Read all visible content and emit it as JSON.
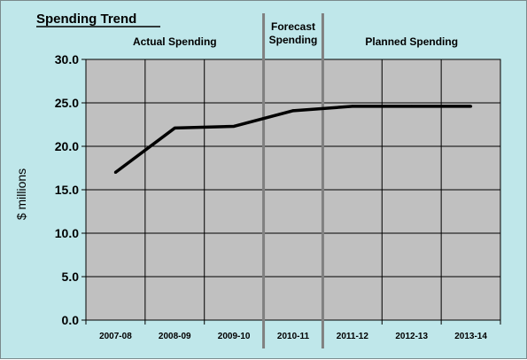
{
  "chart_data": {
    "type": "line",
    "title": "Spending Trend",
    "ylabel": "$ millions",
    "xlabel": "",
    "categories": [
      "2007-08",
      "2008-09",
      "2009-10",
      "2010-11",
      "2011-12",
      "2012-13",
      "2013-14"
    ],
    "series": [
      {
        "values": [
          17.0,
          22.1,
          22.3,
          24.1,
          24.6,
          24.6,
          24.6
        ]
      }
    ],
    "ylim": [
      0,
      30
    ],
    "yticks": [
      "0.0",
      "5.0",
      "10.0",
      "15.0",
      "20.0",
      "25.0",
      "30.0"
    ],
    "grid": true,
    "sections": [
      {
        "label_lines": [
          "Actual Spending"
        ]
      },
      {
        "label_lines": [
          "Forecast",
          "Spending"
        ]
      },
      {
        "label_lines": [
          "Planned Spending"
        ]
      }
    ],
    "colors": {
      "background": "#bfe7ea",
      "plot_area": "#c0c0c0",
      "line": "#000000",
      "divider": "#808080"
    }
  }
}
